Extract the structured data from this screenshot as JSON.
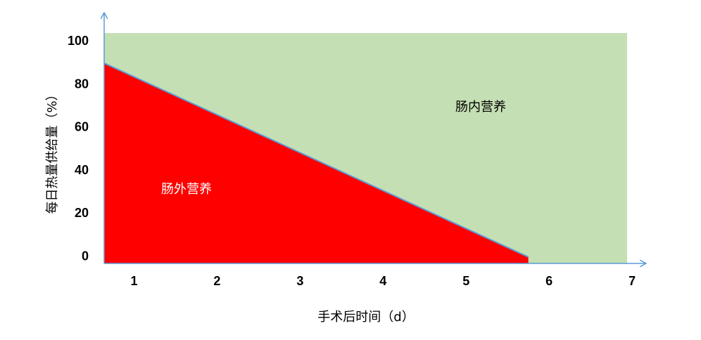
{
  "chart_data": {
    "type": "area",
    "x_label": "手术后时间（d）",
    "y_label": "每日热量供给量（%）",
    "xlim": [
      0.64,
      6.94
    ],
    "xticks": [
      1,
      2,
      3,
      4,
      5,
      6,
      7
    ],
    "ylim": [
      -3,
      104
    ],
    "yticks": [
      0,
      20,
      40,
      60,
      80,
      100
    ],
    "series": [
      {
        "name": "肠内营养",
        "color": "#c4dfb3",
        "x": [
          0.64,
          6.94
        ],
        "values": [
          104,
          104
        ]
      },
      {
        "name": "肠外营养",
        "color": "#ff0000",
        "line_color": "#5b9bd5",
        "x": [
          0.64,
          5.75
        ],
        "values": [
          90,
          0
        ]
      }
    ]
  }
}
